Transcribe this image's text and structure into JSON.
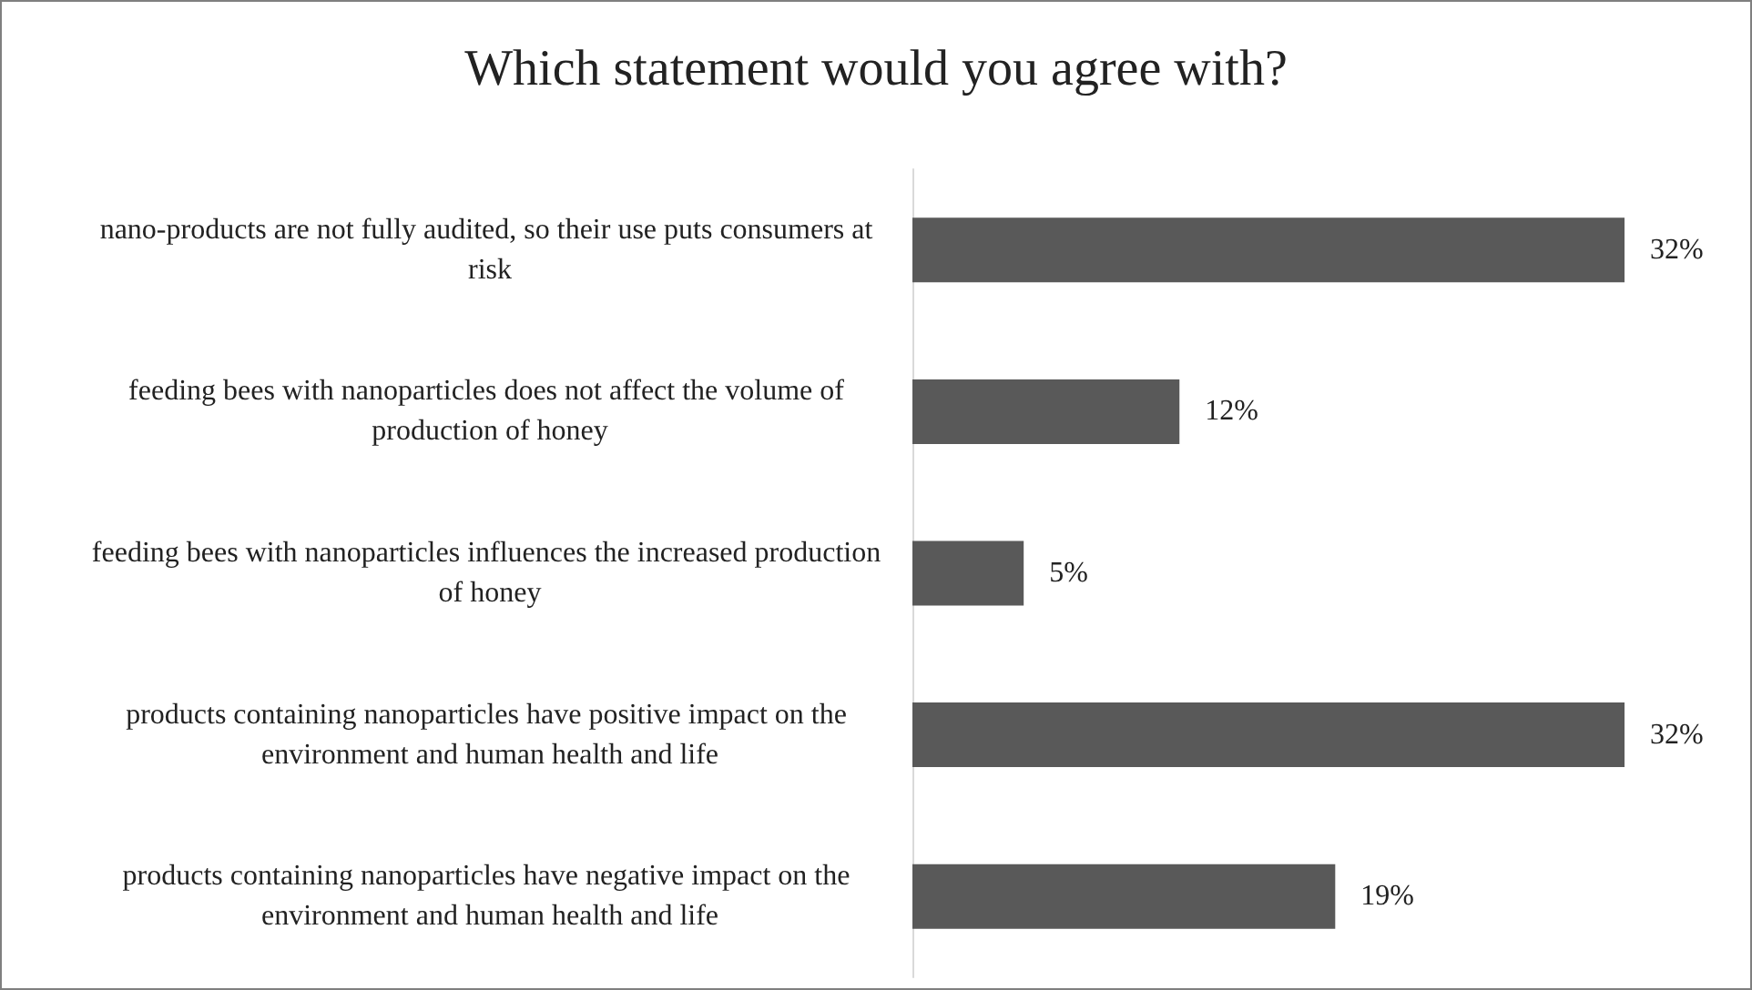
{
  "chart_data": {
    "type": "bar",
    "orientation": "horizontal",
    "title": "Which statement would you agree with?",
    "categories": [
      "nano-products are not fully audited, so their use puts consumers at risk",
      "feeding bees with nanoparticles does not affect the volume of production of honey",
      "feeding bees with nanoparticles influences the increased production of honey",
      "products containing nanoparticles have positive impact on the environment and human health and life",
      "products containing nanoparticles have negative impact on the environment and human health and life"
    ],
    "values": [
      32,
      12,
      5,
      32,
      19
    ],
    "value_labels": [
      "32%",
      "12%",
      "5%",
      "32%",
      "19%"
    ],
    "color": "#595959"
  }
}
